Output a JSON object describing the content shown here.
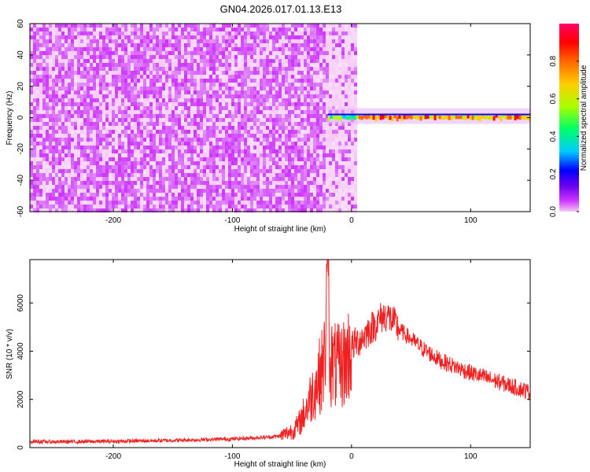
{
  "figure": {
    "title": "GN04.2026.017.01.13.E13"
  },
  "chart_data": [
    {
      "type": "heatmap",
      "xlabel": "Height of straight line (km)",
      "ylabel": "Frequency (Hz)",
      "xlim": [
        -270,
        150
      ],
      "ylim": [
        -60,
        60
      ],
      "x_ticks": [
        -200,
        -100,
        0,
        100
      ],
      "y_ticks": [
        -60,
        -40,
        -20,
        0,
        20,
        40,
        60
      ],
      "grid": false,
      "description_regions": [
        {
          "x_range": [
            -270,
            3
          ],
          "freq_range": [
            -60,
            60
          ],
          "amplitude_range": [
            0.02,
            0.15
          ],
          "pattern": "broadband noise"
        },
        {
          "x_range": [
            -20,
            150
          ],
          "freq_range": [
            -3,
            6
          ],
          "amplitude_range": [
            0.3,
            0.95
          ],
          "pattern": "narrow band near 0 Hz"
        }
      ],
      "colorbar": {
        "label": "Normalized spectral amplitude",
        "ticks": [
          0.0,
          0.2,
          0.4,
          0.6,
          0.8
        ],
        "range": [
          0,
          1
        ],
        "colors": [
          "#f7c8f7",
          "#cc33ff",
          "#6600ee",
          "#0000ff",
          "#00ccff",
          "#00ff66",
          "#aaff00",
          "#ffcc00",
          "#ff6600",
          "#ff0000",
          "#ff0066"
        ]
      }
    },
    {
      "type": "line",
      "xlabel": "Height of straight line (km)",
      "ylabel": "SNR (10 * v/v)",
      "xlim": [
        -270,
        150
      ],
      "ylim": [
        0,
        7800
      ],
      "x_ticks": [
        -200,
        -100,
        0,
        100
      ],
      "y_ticks": [
        0,
        2000,
        4000,
        6000
      ],
      "grid": false,
      "series": [
        {
          "color": "#ee2222",
          "x": [
            -270,
            -250,
            -200,
            -150,
            -100,
            -75,
            -60,
            -50,
            -45,
            -40,
            -35,
            -30,
            -25,
            -22,
            -20,
            -18,
            -15,
            -10,
            -5,
            0,
            5,
            10,
            15,
            20,
            25,
            30,
            35,
            40,
            50,
            60,
            75,
            100,
            125,
            150
          ],
          "y": [
            260,
            240,
            260,
            300,
            360,
            420,
            480,
            700,
            900,
            1400,
            2000,
            2600,
            3200,
            3800,
            7800,
            3600,
            3400,
            3300,
            3600,
            4200,
            4400,
            4600,
            4900,
            5100,
            5400,
            5500,
            5200,
            4900,
            4500,
            4100,
            3600,
            3100,
            2700,
            2300
          ]
        }
      ]
    }
  ]
}
